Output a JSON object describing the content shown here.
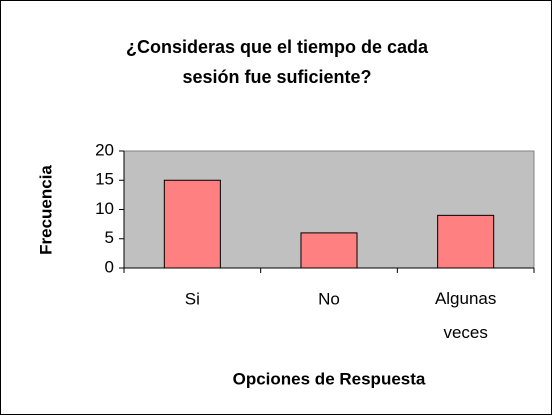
{
  "chart_data": {
    "type": "bar",
    "title": [
      "¿Consideras que el tiempo de cada",
      "sesión fue suficiente?"
    ],
    "x_label": "Opciones de Respuesta",
    "y_label": "Frecuencia",
    "categories": [
      "Si",
      "No",
      "Algunas veces"
    ],
    "values": [
      15,
      6,
      9
    ],
    "color": "#ff8080",
    "ylim": [
      0,
      20
    ],
    "yticks": [
      0,
      5,
      10,
      15,
      20
    ],
    "grid": false
  }
}
